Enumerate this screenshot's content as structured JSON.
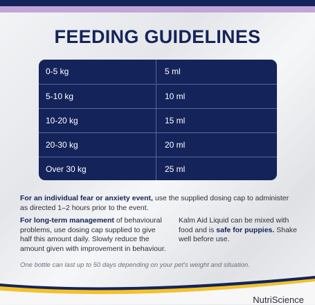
{
  "title": "FEEDING GUIDELINES",
  "table": {
    "rows": [
      {
        "weight": "0-5 kg",
        "dose": "5 ml"
      },
      {
        "weight": "5-10 kg",
        "dose": "10 ml"
      },
      {
        "weight": "10-20 kg",
        "dose": "15 ml"
      },
      {
        "weight": "20-30 kg",
        "dose": "20 ml"
      },
      {
        "weight": "Over 30 kg",
        "dose": "25 ml"
      }
    ]
  },
  "para1": {
    "bold": "For an individual fear or anxiety event,",
    "text": " use the supplied dosing cap to administer as directed 1–2 hours prior to the event."
  },
  "para2": {
    "bold": "For long-term management",
    "text": " of behavioural problems, use dosing cap supplied to give half this amount daily. Slowly reduce the amount given with improvement in behaviour."
  },
  "para3": {
    "text1": "Kalm Aid Liquid can be mixed with food and is ",
    "bold": "safe for puppies.",
    "text2": " Shake well before use."
  },
  "note": "One bottle can last up to 50 days depending on your pet's weight and situation.",
  "brand": "NutriScience",
  "colors": {
    "navy": "#14245a",
    "lilac": "#c0a6d8",
    "gold": "#f3c12b"
  }
}
